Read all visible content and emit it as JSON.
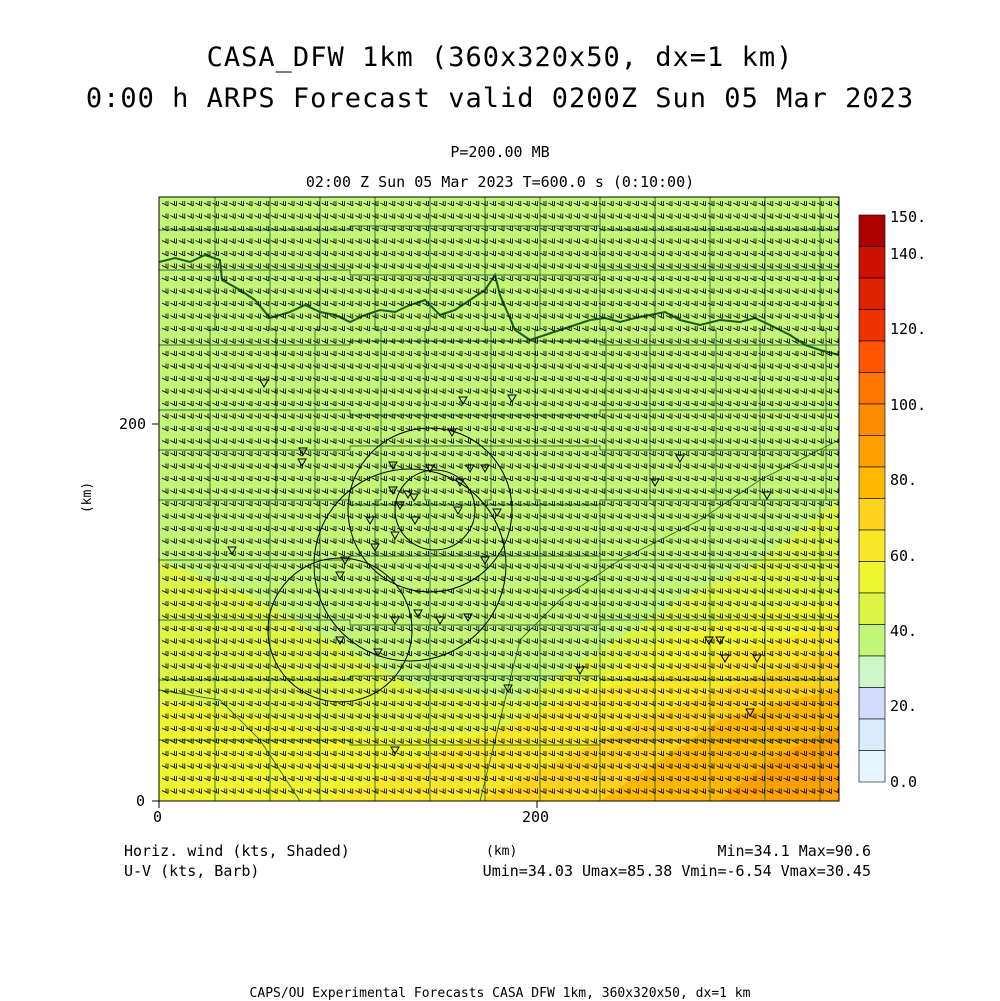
{
  "title": {
    "line1": "CASA_DFW 1km (360x320x50, dx=1 km)",
    "line2": "0:00 h ARPS Forecast valid 0200Z Sun 05 Mar 2023"
  },
  "subtitle": {
    "level": "P=200.00 MB",
    "time": "02:00 Z Sun 05 Mar 2023   T=600.0 s (0:10:00)"
  },
  "axes": {
    "x_ticks": [
      "0",
      "200"
    ],
    "y_ticks": [
      "0",
      "200"
    ],
    "x_label": "(km)",
    "y_label": "(km)"
  },
  "colorbar": {
    "labels": [
      "150.",
      "140.",
      "120.",
      "100.",
      "80.",
      "60.",
      "40.",
      "20.",
      "0.0"
    ],
    "colors": [
      "#aa0000",
      "#cc1100",
      "#dd2200",
      "#ee3300",
      "#ff5500",
      "#ff7700",
      "#ff8c00",
      "#ffa000",
      "#ffb800",
      "#ffd21e",
      "#fae628",
      "#f0f532",
      "#dcf546",
      "#c3f578",
      "#cdf5c8",
      "#d2dcfa",
      "#dcebfa",
      "#e6f5ff"
    ]
  },
  "footer_left": {
    "line1": "Horiz. wind (kts, Shaded)",
    "line2": "U-V (kts, Barb)"
  },
  "footer_right": {
    "line1": "Min=34.1 Max=90.6",
    "line2": "Umin=34.03 Umax=85.38 Vmin=-6.54 Vmax=30.45"
  },
  "credits": "CAPS/OU Experimental Forecasts  CASA DFW 1km, 360x320x50, dx=1 km",
  "map_colors": {
    "frame": "#000000",
    "county_lines": "#2a6a3a",
    "state_border": "#1b5e20",
    "radar_rings": "#000000",
    "barbs": "#000000",
    "light_green": "#c3f578",
    "green": "#dcf546",
    "yellow_green": "#f0f532",
    "yellow": "#fae628",
    "gold": "#ffd21e",
    "orange": "#ffb800",
    "dark_orange": "#ffa000"
  },
  "stations_icon": "triangle-down-icon"
}
